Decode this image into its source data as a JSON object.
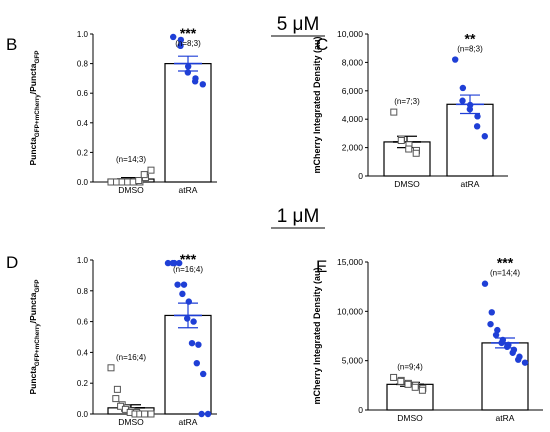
{
  "sections": [
    {
      "label": "5 μM"
    },
    {
      "label": "1 μM"
    }
  ],
  "colors": {
    "atra": "#1f3fd6",
    "dmso_marker": "#555555",
    "axis": "#000000"
  },
  "chart_data": [
    {
      "id": "B",
      "type": "bar",
      "panel_label": "B",
      "ylabel_parts": [
        "Puncta",
        "GFP+mCherry",
        "/Puncta",
        "GFP"
      ],
      "categories": [
        "DMSO",
        "atRA"
      ],
      "values": [
        0.02,
        0.8
      ],
      "sem": [
        0.01,
        0.05
      ],
      "ylim": [
        0,
        1.0
      ],
      "yticks": [
        0.0,
        0.2,
        0.4,
        0.6,
        0.8,
        1.0
      ],
      "yticklabels": [
        "0.0",
        "0.2",
        "0.4",
        "0.6",
        "0.8",
        "1.0"
      ],
      "n_labels": [
        "(n=14;3)",
        "(n=8;3)"
      ],
      "significance": [
        "",
        "***"
      ],
      "points": [
        [
          0.0,
          0.0,
          0.0,
          0.0,
          0.0,
          0.0,
          0.0,
          0.0,
          0.0,
          0.0,
          0.01,
          0.03,
          0.05,
          0.08
        ],
        [
          0.98,
          0.96,
          0.92,
          0.78,
          0.74,
          0.7,
          0.68,
          0.66
        ]
      ]
    },
    {
      "id": "C",
      "type": "bar",
      "panel_label": "C",
      "ylabel_parts": [
        "mCherry Integrated Density (au)"
      ],
      "categories": [
        "DMSO",
        "atRA"
      ],
      "values": [
        2400,
        5050
      ],
      "sem": [
        400,
        650
      ],
      "ylim": [
        0,
        10000
      ],
      "yticks": [
        0,
        2000,
        4000,
        6000,
        8000,
        10000
      ],
      "yticklabels": [
        "0",
        "2,000",
        "4,000",
        "6,000",
        "8,000",
        "10,000"
      ],
      "n_labels": [
        "(n=7;3)",
        "(n=8;3)"
      ],
      "significance": [
        "",
        "**"
      ],
      "points": [
        [
          4500,
          2600,
          2500,
          2200,
          1900,
          1800,
          1600
        ],
        [
          8200,
          6200,
          5300,
          5000,
          4700,
          4200,
          3500,
          2800
        ]
      ]
    },
    {
      "id": "D",
      "type": "bar",
      "panel_label": "D",
      "ylabel_parts": [
        "Puncta",
        "GFP+mCherry",
        "/Puncta",
        "GFP"
      ],
      "categories": [
        "DMSO",
        "atRA"
      ],
      "values": [
        0.04,
        0.64
      ],
      "sem": [
        0.02,
        0.08
      ],
      "ylim": [
        0,
        1.0
      ],
      "yticks": [
        0.0,
        0.2,
        0.4,
        0.6,
        0.8,
        1.0
      ],
      "yticklabels": [
        "0.0",
        "0.2",
        "0.4",
        "0.6",
        "0.8",
        "1.0"
      ],
      "n_labels": [
        "(n=16;4)",
        "(n=16;4)"
      ],
      "significance": [
        "",
        "***"
      ],
      "points": [
        [
          0.3,
          0.16,
          0.1,
          0.06,
          0.05,
          0.04,
          0.03,
          0.02,
          0.01,
          0.01,
          0.0,
          0.0,
          0.0,
          0.0,
          0.0,
          0.0
        ],
        [
          0.98,
          0.98,
          0.98,
          0.98,
          0.84,
          0.84,
          0.78,
          0.73,
          0.62,
          0.6,
          0.46,
          0.45,
          0.33,
          0.26,
          0.0,
          0.0
        ]
      ]
    },
    {
      "id": "E",
      "type": "bar",
      "panel_label": "E",
      "ylabel_parts": [
        "mCherry Integrated Density (au)"
      ],
      "categories": [
        "DMSO",
        "atRA"
      ],
      "values": [
        2600,
        6800
      ],
      "sem": [
        200,
        500
      ],
      "ylim": [
        0,
        15000
      ],
      "yticks": [
        0,
        5000,
        10000,
        15000
      ],
      "yticklabels": [
        "0",
        "5,000",
        "10,000",
        "15,000"
      ],
      "n_labels": [
        "(n=9;4)",
        "(n=14;4)"
      ],
      "significance": [
        "",
        "***"
      ],
      "points": [
        [
          3300,
          3000,
          2900,
          2700,
          2600,
          2500,
          2300,
          2200,
          2000
        ],
        [
          12800,
          9900,
          8700,
          8100,
          7600,
          7100,
          6800,
          6600,
          6400,
          6100,
          5800,
          5400,
          5100,
          4800
        ]
      ]
    }
  ]
}
